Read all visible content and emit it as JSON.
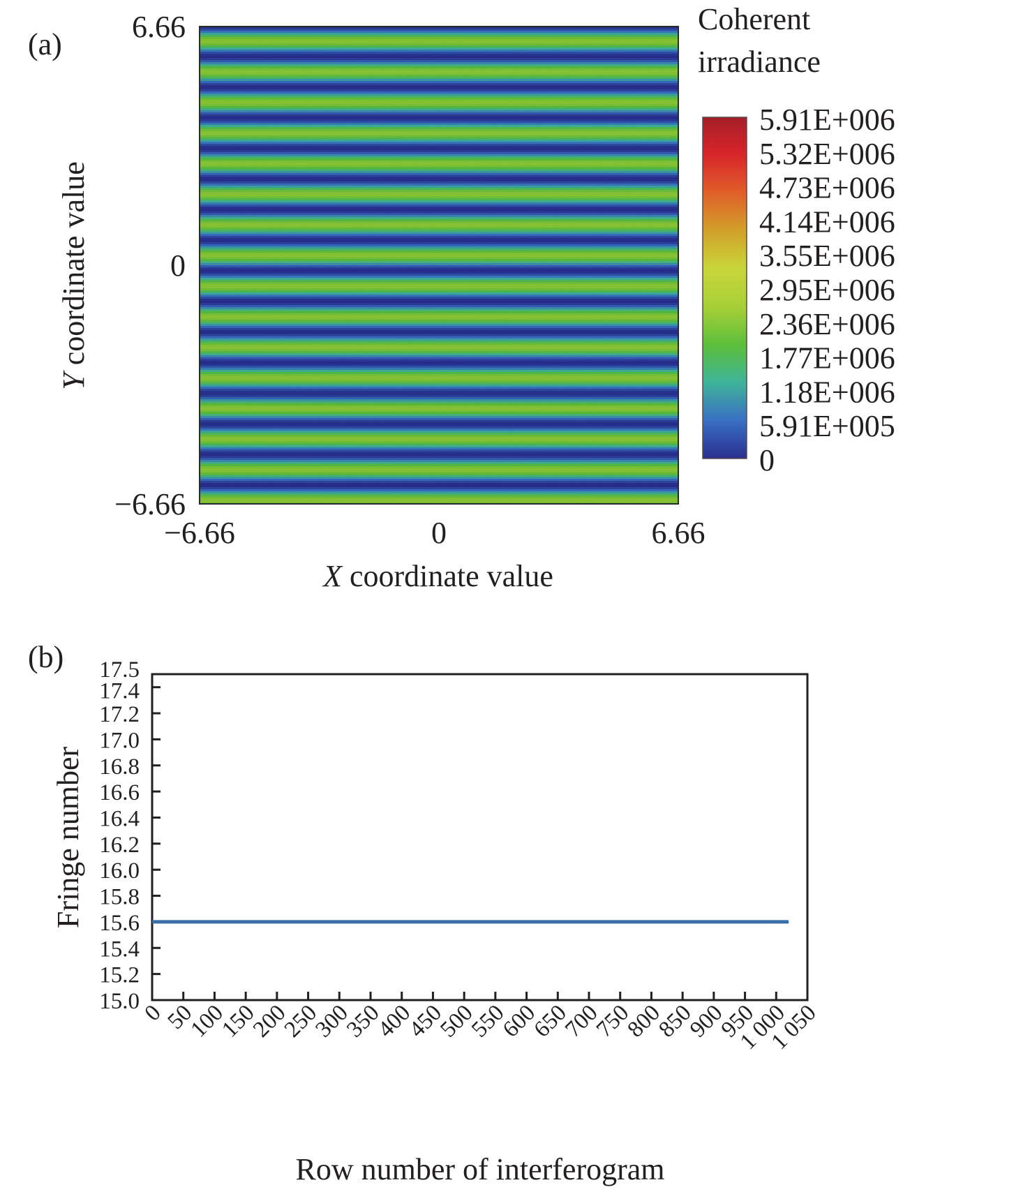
{
  "chart_data": [
    {
      "panel": "(a)",
      "type": "heatmap",
      "title": "",
      "xlabel_italic": "X",
      "xlabel_rest": " coordinate value",
      "ylabel_italic": "Y",
      "ylabel_rest": " coordinate value",
      "xlim": [
        -6.66,
        6.66
      ],
      "ylim": [
        -6.66,
        6.66
      ],
      "x_ticks": [
        {
          "value": -6.66,
          "label": "−6.66"
        },
        {
          "value": 0,
          "label": "0"
        },
        {
          "value": 6.66,
          "label": "6.66"
        }
      ],
      "y_ticks": [
        {
          "value": 6.66,
          "label": "6.66"
        },
        {
          "value": 0,
          "label": "0"
        },
        {
          "value": -6.66,
          "label": "−6.66"
        }
      ],
      "pattern": "horizontal interference fringes",
      "fringe_count": 15.6,
      "fringe_peak_value": 2400000.0,
      "colorbar": {
        "title_line1": "Coherent",
        "title_line2": "irradiance",
        "range": [
          0,
          5910000
        ],
        "labels": [
          "5.91E+006",
          "5.32E+006",
          "4.73E+006",
          "4.14E+006",
          "3.55E+006",
          "2.95E+006",
          "2.36E+006",
          "1.77E+006",
          "1.18E+006",
          "5.91E+005",
          "0"
        ],
        "colors": [
          "#2a2f8f",
          "#3a6fc4",
          "#3fb39a",
          "#5cbf3a",
          "#a8cf38",
          "#c8d63a",
          "#d2a12a",
          "#e0602a",
          "#d8262a",
          "#a51e28"
        ]
      }
    },
    {
      "panel": "(b)",
      "type": "line",
      "title": "",
      "xlabel": "Row number of interferogram",
      "ylabel": "Fringe number",
      "xlim": [
        0,
        1050
      ],
      "ylim": [
        15.0,
        17.5
      ],
      "x_ticks": [
        "0",
        "50",
        "100",
        "150",
        "200",
        "250",
        "300",
        "350",
        "400",
        "450",
        "500",
        "550",
        "600",
        "650",
        "700",
        "750",
        "800",
        "850",
        "900",
        "950",
        "1 000",
        "1 050"
      ],
      "x_tick_values": [
        0,
        50,
        100,
        150,
        200,
        250,
        300,
        350,
        400,
        450,
        500,
        550,
        600,
        650,
        700,
        750,
        800,
        850,
        900,
        950,
        1000,
        1050
      ],
      "y_ticks": [
        "17.5",
        "17.4",
        "17.2",
        "17.0",
        "16.8",
        "16.6",
        "16.4",
        "16.2",
        "16.0",
        "15.8",
        "15.6",
        "15.4",
        "15.2",
        "15.0"
      ],
      "y_tick_values": [
        17.5,
        17.4,
        17.2,
        17.0,
        16.8,
        16.6,
        16.4,
        16.2,
        16.0,
        15.8,
        15.6,
        15.4,
        15.2,
        15.0
      ],
      "series": [
        {
          "name": "Fringe number",
          "color": "#3a6ea8",
          "x": [
            0,
            1020
          ],
          "y": [
            15.6,
            15.6
          ]
        }
      ],
      "grid": false,
      "legend": "none"
    }
  ]
}
